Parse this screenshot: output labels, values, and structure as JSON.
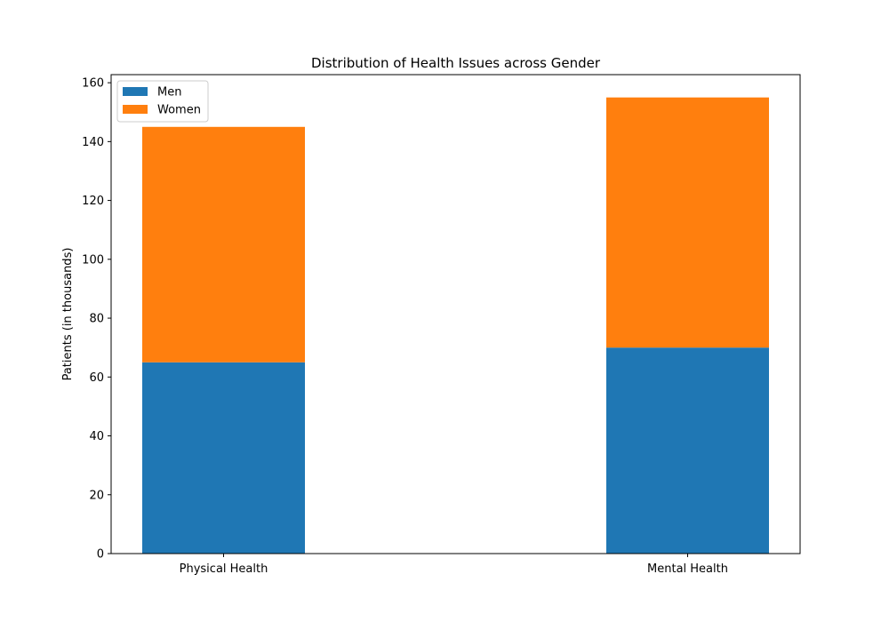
{
  "chart_data": {
    "type": "bar",
    "stacked": true,
    "title": "Distribution of Health Issues across Gender",
    "xlabel": "",
    "ylabel": "Patients (in thousands)",
    "categories": [
      "Physical Health",
      "Mental Health"
    ],
    "series": [
      {
        "name": "Men",
        "values": [
          65,
          70
        ],
        "color": "#1f77b4"
      },
      {
        "name": "Women",
        "values": [
          80,
          85
        ],
        "color": "#ff7f0e"
      }
    ],
    "ylim": [
      0,
      162.75
    ],
    "yticks": [
      0,
      20,
      40,
      60,
      80,
      100,
      120,
      140,
      160
    ],
    "legend_position": "upper-left",
    "grid": false
  }
}
